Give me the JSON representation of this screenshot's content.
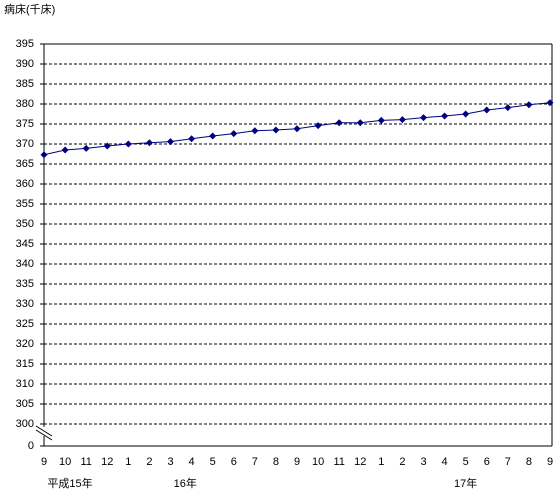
{
  "chart_data": {
    "type": "line",
    "y_axis_label": "病床(千床)",
    "categories": [
      "9",
      "10",
      "11",
      "12",
      "1",
      "2",
      "3",
      "4",
      "5",
      "6",
      "7",
      "8",
      "9",
      "10",
      "11",
      "12",
      "1",
      "2",
      "3",
      "4",
      "5",
      "6",
      "7",
      "8",
      "9"
    ],
    "x_group_labels": [
      "平成15年",
      "16年",
      "17年"
    ],
    "series": [
      {
        "color": "#000080",
        "values": [
          367.3,
          368.5,
          368.9,
          369.5,
          370.0,
          370.3,
          370.6,
          371.3,
          372.0,
          372.6,
          373.3,
          373.5,
          373.8,
          374.6,
          375.3,
          375.3,
          375.9,
          376.1,
          376.6,
          377.0,
          377.5,
          378.5,
          379.1,
          379.8,
          380.3
        ]
      }
    ],
    "ylim": [
      0,
      395
    ],
    "yticks": [
      0,
      300,
      305,
      310,
      315,
      320,
      325,
      330,
      335,
      340,
      345,
      350,
      355,
      360,
      365,
      370,
      375,
      380,
      385,
      390,
      395
    ],
    "y_axis_break": true,
    "grid": true
  }
}
